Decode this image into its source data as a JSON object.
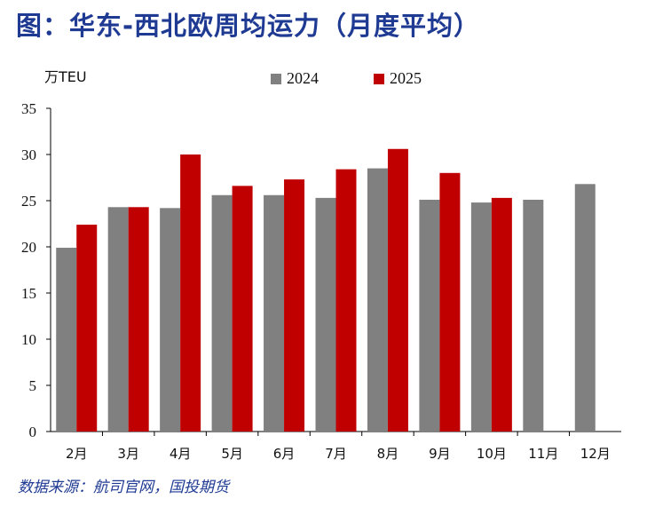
{
  "title": "图：华东-西北欧周均运力（月度平均）",
  "source": "数据来源：航司官网，国投期货",
  "chart_data": {
    "type": "bar",
    "title": "图：华东-西北欧周均运力（月度平均）",
    "ylabel": "万TEU",
    "xlabel": "",
    "ylim": [
      0,
      35
    ],
    "yticks": [
      0,
      5,
      10,
      15,
      20,
      25,
      30,
      35
    ],
    "grid": false,
    "legend_position": "top",
    "categories": [
      "2月",
      "3月",
      "4月",
      "5月",
      "6月",
      "7月",
      "8月",
      "9月",
      "10月",
      "11月",
      "12月"
    ],
    "series": [
      {
        "name": "2024",
        "color": "#808080",
        "values": [
          19.9,
          24.3,
          24.2,
          25.6,
          25.6,
          25.3,
          28.5,
          25.1,
          24.8,
          25.1,
          26.8
        ]
      },
      {
        "name": "2025",
        "color": "#c00000",
        "values": [
          22.4,
          24.3,
          30.0,
          26.6,
          27.3,
          28.4,
          30.6,
          28.0,
          25.3,
          null,
          null
        ]
      }
    ]
  }
}
